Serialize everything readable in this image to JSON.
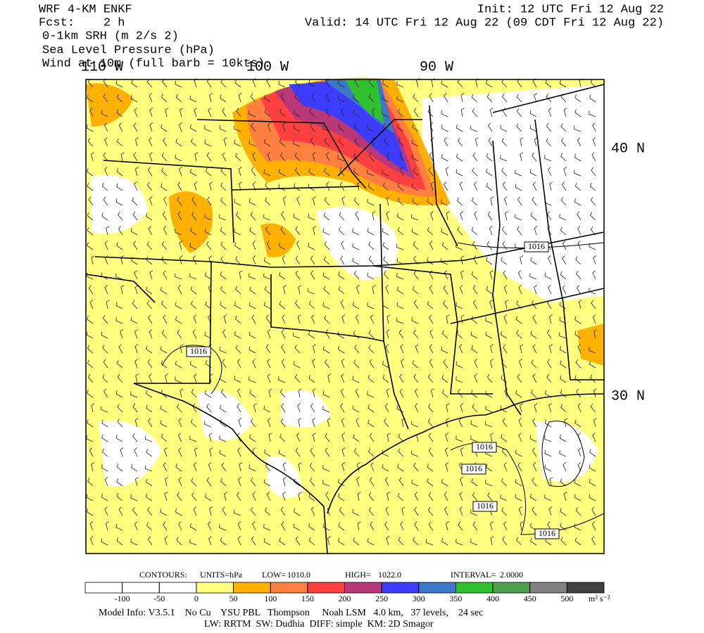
{
  "header": {
    "model": "WRF 4-KM ENKF",
    "forecast": "Fcst:    2 h",
    "fields": [
      "0-1km SRH (m 2/s 2)",
      "Sea Level Pressure (hPa)",
      "Wind at 10m (full barb = 10kts)"
    ],
    "init": "Init: 12 UTC Fri 12 Aug 22",
    "valid": "Valid: 14 UTC Fri 12 Aug 22 (09 CDT Fri 12 Aug 22)"
  },
  "map": {
    "longitude_labels": [
      "110 W",
      "100 W",
      "90 W"
    ],
    "latitude_labels": [
      "40 N",
      "30 N"
    ],
    "pressure_labels": [
      "1016",
      "1016",
      "1016",
      "1016",
      "1016",
      "1016"
    ]
  },
  "contours": {
    "label": "CONTOURS:",
    "units": "UNITS=hPa",
    "low_label": "LOW=",
    "low": "1010.0",
    "high_label": "HIGH=",
    "high": "1022.0",
    "interval_label": "INTERVAL=",
    "interval": "2.0000"
  },
  "colorbar": {
    "ticks": [
      -100,
      -50,
      0,
      50,
      100,
      150,
      200,
      250,
      300,
      350,
      400,
      450,
      500
    ],
    "units": "m² s⁻²",
    "colors": [
      "#ffffff",
      "#ffffff",
      "#ffffff",
      "#ffff80",
      "#ffb000",
      "#ff8040",
      "#ff4040",
      "#b83878",
      "#3c3cff",
      "#3c78c8",
      "#30c030",
      "#50a050",
      "#808080",
      "#404040"
    ]
  },
  "footer": {
    "line1": "Model Info: V3.5.1    No Cu    YSU PBL   Thompson     Noah LSM   4.0 km,   37 levels,    24 sec",
    "line2": "LW: RRTM  SW: Dudhia  DIFF: simple  KM: 2D Smagor"
  }
}
